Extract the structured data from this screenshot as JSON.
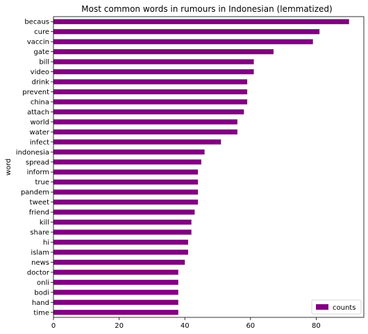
{
  "chart_data": {
    "type": "bar",
    "orientation": "horizontal",
    "title": "Most common words in rumours in Indonesian (lemmatized)",
    "xlabel": "",
    "ylabel": "word",
    "xlim": [
      0,
      94.5
    ],
    "xticks": [
      0,
      20,
      40,
      60,
      80
    ],
    "grid": false,
    "legend": {
      "position": "bottom-right",
      "entries": [
        "counts"
      ]
    },
    "bar_color": "#800080",
    "categories": [
      "becaus",
      "cure",
      "vaccin",
      "gate",
      "bill",
      "video",
      "drink",
      "prevent",
      "china",
      "attach",
      "world",
      "water",
      "infect",
      "indonesia",
      "spread",
      "inform",
      "true",
      "pandem",
      "tweet",
      "friend",
      "kill",
      "share",
      "hi",
      "islam",
      "news",
      "doctor",
      "onli",
      "bodi",
      "hand",
      "time"
    ],
    "series": [
      {
        "name": "counts",
        "values": [
          90,
          81,
          79,
          67,
          61,
          61,
          59,
          59,
          59,
          58,
          56,
          56,
          51,
          46,
          45,
          44,
          44,
          44,
          44,
          43,
          42,
          42,
          41,
          41,
          40,
          38,
          38,
          38,
          38,
          38
        ]
      }
    ]
  }
}
